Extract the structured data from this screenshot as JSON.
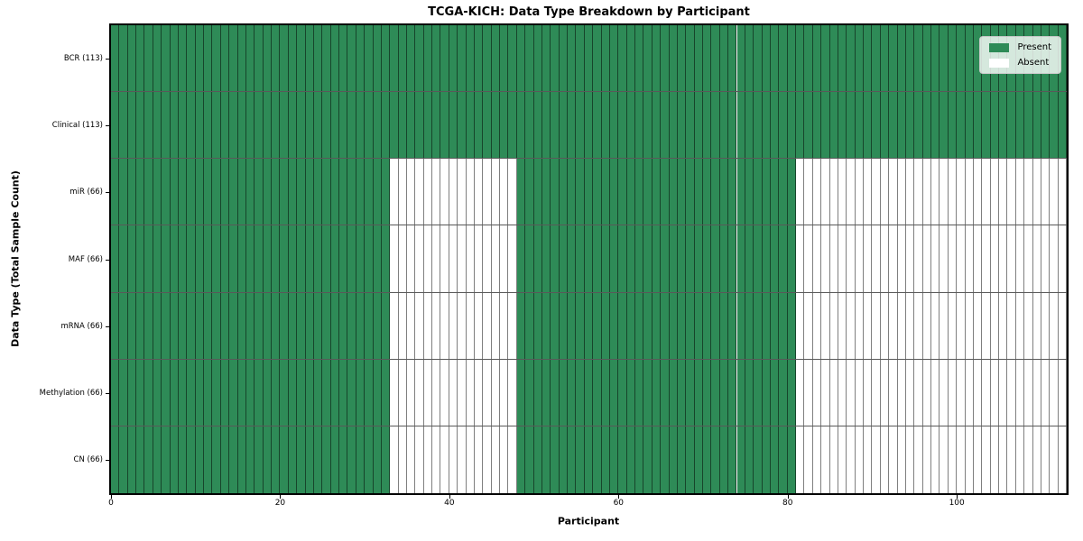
{
  "chart_data": {
    "type": "heatmap",
    "title": "TCGA-KICH: Data Type Breakdown by Participant",
    "xlabel": "Participant",
    "ylabel": "Data Type (Total Sample Count)",
    "x_ticks": [
      0,
      20,
      40,
      60,
      80,
      100
    ],
    "x_range": [
      0,
      113
    ],
    "n_participants": 113,
    "grid": true,
    "legend_position": "upper right",
    "rows": [
      {
        "label": "BCR (113)",
        "data_type": "BCR",
        "total_samples": 113,
        "present_ranges": [
          [
            0,
            113
          ]
        ]
      },
      {
        "label": "Clinical (113)",
        "data_type": "Clinical",
        "total_samples": 113,
        "present_ranges": [
          [
            0,
            113
          ]
        ]
      },
      {
        "label": "miR (66)",
        "data_type": "miR",
        "total_samples": 66,
        "present_ranges": [
          [
            0,
            33
          ],
          [
            48,
            81
          ]
        ]
      },
      {
        "label": "MAF (66)",
        "data_type": "MAF",
        "total_samples": 66,
        "present_ranges": [
          [
            0,
            33
          ],
          [
            48,
            81
          ]
        ]
      },
      {
        "label": "mRNA (66)",
        "data_type": "mRNA",
        "total_samples": 66,
        "present_ranges": [
          [
            0,
            33
          ],
          [
            48,
            81
          ]
        ]
      },
      {
        "label": "Methylation (66)",
        "data_type": "Methylation",
        "total_samples": 66,
        "present_ranges": [
          [
            0,
            33
          ],
          [
            48,
            81
          ]
        ]
      },
      {
        "label": "CN (66)",
        "data_type": "CN",
        "total_samples": 66,
        "present_ranges": [
          [
            0,
            33
          ],
          [
            48,
            81
          ]
        ]
      }
    ],
    "legend": [
      {
        "label": "Present",
        "color": "#2e8b57"
      },
      {
        "label": "Absent",
        "color": "#ffffff"
      }
    ],
    "colors": {
      "present": "#2e8b57",
      "absent": "#ffffff",
      "cell_border": "#000000",
      "spine": "#000000",
      "background": "#ffffff"
    }
  }
}
